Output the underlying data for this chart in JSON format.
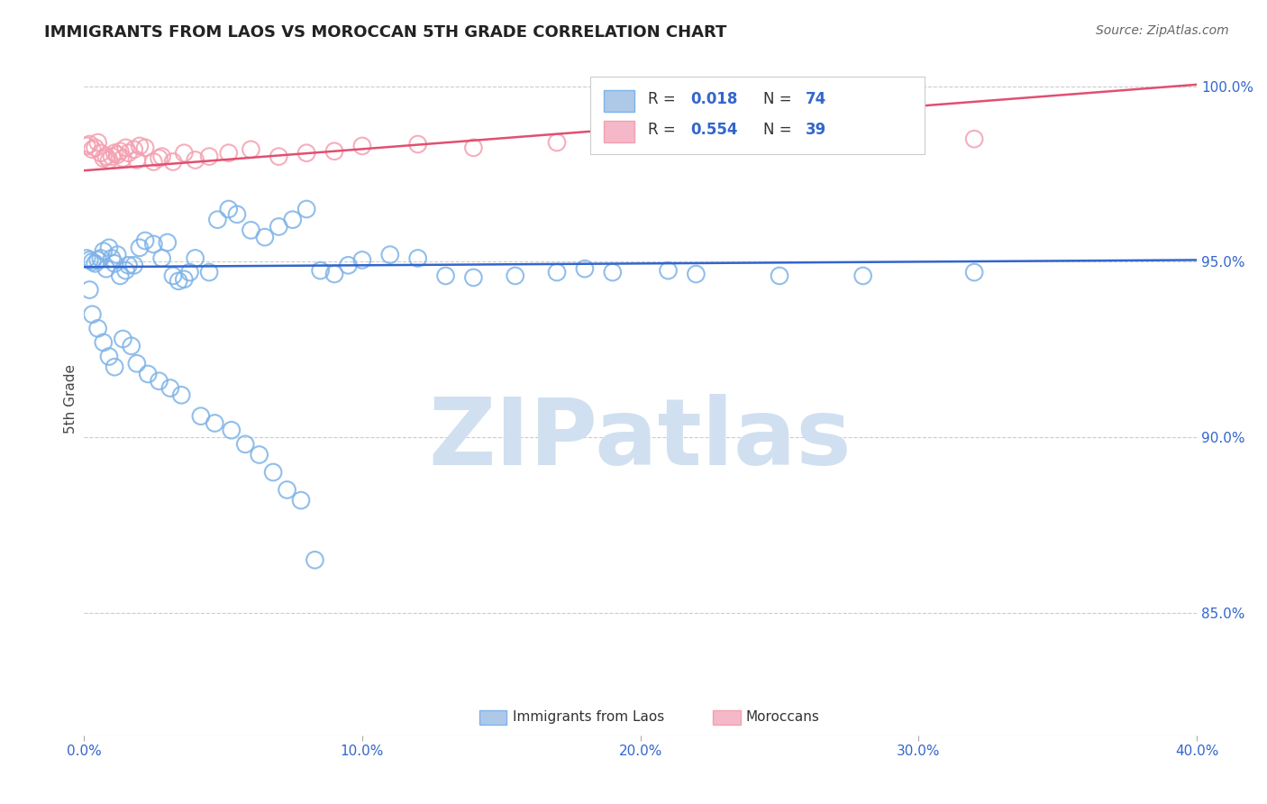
{
  "title": "IMMIGRANTS FROM LAOS VS MOROCCAN 5TH GRADE CORRELATION CHART",
  "source": "Source: ZipAtlas.com",
  "ylabel": "5th Grade",
  "xmin": 0.0,
  "xmax": 0.4,
  "ymin": 0.815,
  "ymax": 1.007,
  "blue_color": "#7EB3E8",
  "pink_color": "#F4A0B0",
  "line_blue": "#3366CC",
  "line_pink": "#E05070",
  "legend_R_blue": "0.018",
  "legend_N_blue": "74",
  "legend_R_pink": "0.554",
  "legend_N_pink": "39",
  "blue_x": [
    0.001,
    0.002,
    0.003,
    0.004,
    0.005,
    0.006,
    0.007,
    0.008,
    0.009,
    0.01,
    0.011,
    0.012,
    0.013,
    0.015,
    0.016,
    0.018,
    0.02,
    0.022,
    0.025,
    0.028,
    0.03,
    0.032,
    0.034,
    0.036,
    0.038,
    0.04,
    0.045,
    0.048,
    0.052,
    0.055,
    0.06,
    0.065,
    0.07,
    0.075,
    0.08,
    0.085,
    0.09,
    0.095,
    0.1,
    0.11,
    0.12,
    0.13,
    0.14,
    0.155,
    0.17,
    0.18,
    0.19,
    0.21,
    0.22,
    0.25,
    0.002,
    0.003,
    0.005,
    0.007,
    0.009,
    0.011,
    0.014,
    0.017,
    0.019,
    0.023,
    0.027,
    0.031,
    0.035,
    0.042,
    0.047,
    0.053,
    0.058,
    0.063,
    0.068,
    0.073,
    0.078,
    0.083,
    0.28,
    0.32
  ],
  "blue_y": [
    0.951,
    0.9505,
    0.95,
    0.9495,
    0.9505,
    0.951,
    0.953,
    0.948,
    0.954,
    0.951,
    0.9495,
    0.952,
    0.946,
    0.9475,
    0.949,
    0.949,
    0.954,
    0.956,
    0.955,
    0.951,
    0.9555,
    0.946,
    0.9445,
    0.945,
    0.947,
    0.951,
    0.947,
    0.962,
    0.965,
    0.9635,
    0.959,
    0.957,
    0.96,
    0.962,
    0.965,
    0.9475,
    0.9465,
    0.949,
    0.9505,
    0.952,
    0.951,
    0.946,
    0.9455,
    0.946,
    0.947,
    0.948,
    0.947,
    0.9475,
    0.9465,
    0.946,
    0.942,
    0.935,
    0.931,
    0.927,
    0.923,
    0.92,
    0.928,
    0.926,
    0.921,
    0.918,
    0.916,
    0.914,
    0.912,
    0.906,
    0.904,
    0.902,
    0.898,
    0.895,
    0.89,
    0.885,
    0.882,
    0.865,
    0.946,
    0.947
  ],
  "pink_x": [
    0.001,
    0.002,
    0.003,
    0.004,
    0.005,
    0.006,
    0.007,
    0.008,
    0.009,
    0.01,
    0.011,
    0.012,
    0.013,
    0.015,
    0.016,
    0.018,
    0.02,
    0.022,
    0.025,
    0.028,
    0.032,
    0.036,
    0.04,
    0.045,
    0.052,
    0.06,
    0.07,
    0.08,
    0.09,
    0.1,
    0.12,
    0.14,
    0.17,
    0.21,
    0.25,
    0.32,
    0.014,
    0.019,
    0.027
  ],
  "pink_y": [
    0.983,
    0.9835,
    0.982,
    0.9825,
    0.984,
    0.981,
    0.9795,
    0.98,
    0.979,
    0.98,
    0.981,
    0.9805,
    0.9815,
    0.9825,
    0.981,
    0.982,
    0.983,
    0.9825,
    0.9785,
    0.98,
    0.9785,
    0.981,
    0.979,
    0.98,
    0.981,
    0.982,
    0.98,
    0.981,
    0.9815,
    0.983,
    0.9835,
    0.9825,
    0.984,
    0.9845,
    0.984,
    0.985,
    0.9795,
    0.979,
    0.9795
  ],
  "blue_line_x": [
    0.0,
    0.4
  ],
  "blue_line_y": [
    0.9485,
    0.9505
  ],
  "pink_line_x": [
    0.0,
    0.4
  ],
  "pink_line_y": [
    0.976,
    1.0005
  ],
  "watermark": "ZIPatlas",
  "watermark_color": "#D0E0F0",
  "ytick_positions": [
    0.85,
    0.9,
    0.95,
    1.0
  ],
  "ytick_labels": [
    "85.0%",
    "90.0%",
    "95.0%",
    "100.0%"
  ],
  "xtick_positions": [
    0.0,
    0.1,
    0.2,
    0.3,
    0.4
  ],
  "xtick_labels": [
    "0.0%",
    "10.0%",
    "20.0%",
    "30.0%",
    "40.0%"
  ]
}
